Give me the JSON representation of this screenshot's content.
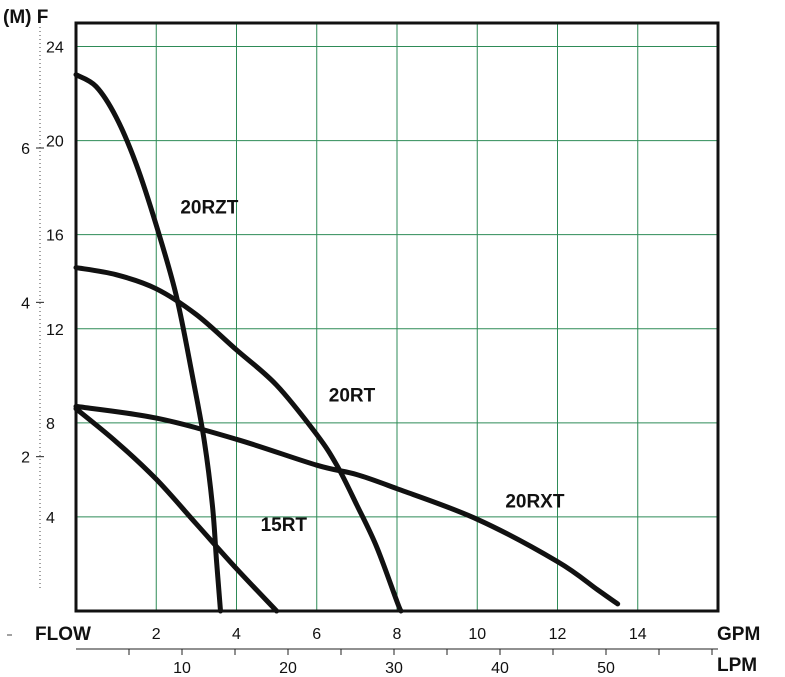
{
  "chart_data": {
    "type": "line",
    "title": "",
    "y_axis_label_left": "(M) F",
    "x_axis_label_left": "FLOW",
    "x_unit_gpm": "GPM",
    "x_unit_lpm": "LPM",
    "gpm_ticks": [
      "2",
      "4",
      "6",
      "8",
      "10",
      "12",
      "14"
    ],
    "lpm_ticks": [
      "10",
      "20",
      "30",
      "40",
      "50"
    ],
    "feet_ticks": [
      "4",
      "8",
      "12",
      "16",
      "20",
      "24"
    ],
    "meter_ticks": [
      "2",
      "4",
      "6"
    ],
    "xlim_gpm": [
      0,
      16
    ],
    "ylim_feet": [
      0,
      25
    ],
    "grid": true,
    "colors": {
      "curve": "#111111",
      "grid": "#2e8b57",
      "frame": "#111111"
    },
    "series": [
      {
        "name": "20RZT",
        "label_x_gpm": 2.6,
        "label_y_ft": 16.9,
        "x": [
          0.0,
          0.5,
          1.0,
          1.5,
          2.0,
          2.5,
          2.9,
          3.2,
          3.4,
          3.5,
          3.6
        ],
        "y": [
          22.8,
          22.3,
          21.0,
          19.0,
          16.4,
          13.4,
          10.0,
          7.2,
          4.5,
          2.2,
          0.0
        ]
      },
      {
        "name": "20RT",
        "label_x_gpm": 6.3,
        "label_y_ft": 8.9,
        "x": [
          0.0,
          1.0,
          2.0,
          3.0,
          4.0,
          5.0,
          6.0,
          6.5,
          7.0,
          7.5,
          8.0,
          8.1
        ],
        "y": [
          14.6,
          14.3,
          13.7,
          12.6,
          11.1,
          9.6,
          7.5,
          6.2,
          4.5,
          2.7,
          0.4,
          0.0
        ]
      },
      {
        "name": "20RXT",
        "label_x_gpm": 10.7,
        "label_y_ft": 4.4,
        "x": [
          0.0,
          2.0,
          4.0,
          6.0,
          7.0,
          8.0,
          10.0,
          12.0,
          13.0,
          13.5
        ],
        "y": [
          8.7,
          8.2,
          7.3,
          6.2,
          5.8,
          5.2,
          3.9,
          2.1,
          0.9,
          0.3
        ]
      },
      {
        "name": "15RT",
        "label_x_gpm": 4.6,
        "label_y_ft": 3.4,
        "x": [
          0.0,
          1.0,
          2.0,
          3.0,
          4.0,
          5.0
        ],
        "y": [
          8.6,
          7.2,
          5.6,
          3.7,
          1.8,
          0.0
        ]
      }
    ]
  }
}
